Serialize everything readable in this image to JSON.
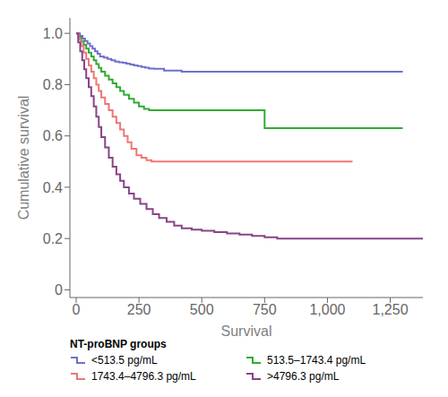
{
  "chart_data": {
    "type": "line",
    "title": "",
    "xlabel": "Survival",
    "ylabel": "Cumulative survival",
    "xlim": [
      -25,
      1380
    ],
    "ylim": [
      -0.03,
      1.06
    ],
    "xticks": [
      0,
      250,
      500,
      750,
      {
        "value": 1000,
        "label": "1,000"
      },
      {
        "value": 1250,
        "label": "1,250"
      }
    ],
    "yticks": [
      0,
      0.2,
      0.4,
      0.6,
      0.8,
      {
        "value": 1.0,
        "label": "1.0"
      }
    ],
    "legend_title": "NT-proBNP groups",
    "legend": "lower left",
    "grid": false,
    "line_style": "step",
    "series": [
      {
        "name": "<513.5 pg/mL",
        "color": "#7070CC",
        "x": [
          0,
          15,
          25,
          35,
          45,
          55,
          65,
          75,
          85,
          95,
          110,
          125,
          140,
          155,
          170,
          185,
          200,
          215,
          230,
          245,
          260,
          275,
          290,
          310,
          350,
          420,
          1300
        ],
        "values": [
          1.0,
          0.99,
          0.98,
          0.97,
          0.96,
          0.95,
          0.94,
          0.93,
          0.92,
          0.91,
          0.905,
          0.9,
          0.895,
          0.89,
          0.887,
          0.885,
          0.882,
          0.878,
          0.875,
          0.872,
          0.869,
          0.866,
          0.863,
          0.862,
          0.855,
          0.85,
          0.85
        ]
      },
      {
        "name": "513.5–1743.4 pg/mL",
        "color": "#33AA33",
        "x": [
          0,
          10,
          20,
          30,
          40,
          50,
          60,
          70,
          80,
          90,
          100,
          115,
          130,
          145,
          160,
          175,
          190,
          210,
          230,
          250,
          270,
          290,
          310,
          330,
          360,
          400,
          450,
          500,
          550,
          600,
          650,
          700,
          750,
          800,
          900,
          1000,
          1100,
          1300
        ],
        "values": [
          1.0,
          0.985,
          0.97,
          0.955,
          0.94,
          0.925,
          0.91,
          0.895,
          0.88,
          0.865,
          0.85,
          0.835,
          0.82,
          0.805,
          0.79,
          0.775,
          0.76,
          0.745,
          0.73,
          0.715,
          0.705,
          0.7,
          0.7,
          0.7,
          0.7,
          0.7,
          0.7,
          0.7,
          0.7,
          0.7,
          0.7,
          0.7,
          0.63,
          0.63,
          0.63,
          0.63,
          0.63,
          0.63
        ]
      },
      {
        "name": "1743.4–4796.3 pg/mL",
        "color": "#EE7777",
        "x": [
          0,
          10,
          20,
          30,
          40,
          50,
          60,
          70,
          80,
          90,
          100,
          115,
          130,
          145,
          160,
          175,
          190,
          205,
          220,
          240,
          260,
          280,
          300,
          320,
          350,
          400,
          450,
          500,
          600,
          700,
          800,
          900,
          1000,
          1100
        ],
        "values": [
          1.0,
          0.975,
          0.95,
          0.925,
          0.9,
          0.875,
          0.85,
          0.825,
          0.8,
          0.775,
          0.75,
          0.725,
          0.7,
          0.675,
          0.65,
          0.625,
          0.6,
          0.575,
          0.55,
          0.525,
          0.515,
          0.505,
          0.5,
          0.5,
          0.5,
          0.5,
          0.5,
          0.5,
          0.5,
          0.5,
          0.5,
          0.5,
          0.5,
          0.5
        ]
      },
      {
        "name": ">4796.3 pg/mL",
        "color": "#884488",
        "x": [
          0,
          8,
          16,
          24,
          32,
          40,
          50,
          60,
          70,
          80,
          90,
          100,
          115,
          130,
          145,
          160,
          175,
          190,
          210,
          230,
          255,
          280,
          305,
          330,
          360,
          390,
          420,
          460,
          500,
          550,
          600,
          650,
          700,
          750,
          800,
          900,
          1000,
          1100,
          1200,
          1380
        ],
        "values": [
          1.0,
          0.965,
          0.93,
          0.895,
          0.86,
          0.825,
          0.79,
          0.755,
          0.715,
          0.675,
          0.635,
          0.595,
          0.555,
          0.515,
          0.48,
          0.45,
          0.425,
          0.4,
          0.375,
          0.355,
          0.335,
          0.315,
          0.295,
          0.28,
          0.265,
          0.25,
          0.24,
          0.235,
          0.23,
          0.225,
          0.22,
          0.215,
          0.21,
          0.205,
          0.2,
          0.2,
          0.2,
          0.2,
          0.2,
          0.2
        ]
      }
    ]
  }
}
